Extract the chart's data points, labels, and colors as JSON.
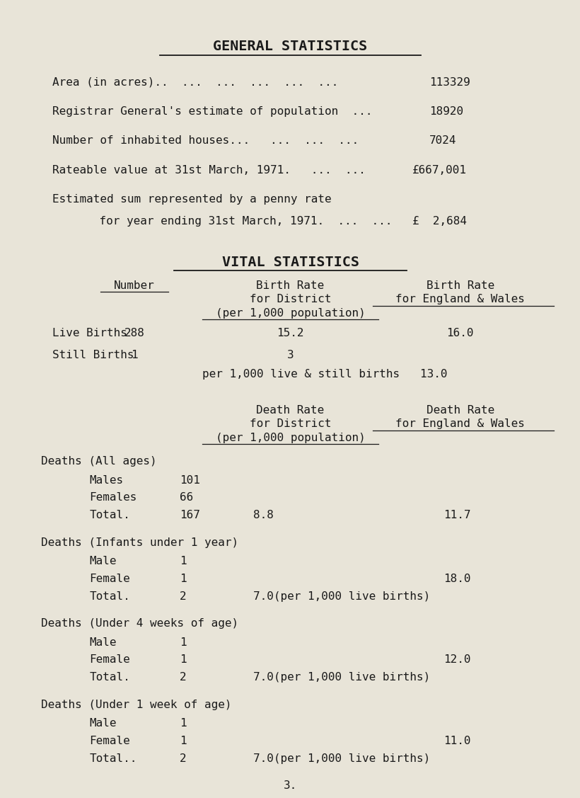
{
  "bg_color": "#e8e4d8",
  "text_color": "#1a1a1a",
  "title": "GENERAL STATISTICS",
  "title2": "VITAL STATISTICS",
  "general_stats": [
    {
      "label": "Area (in acres)..  ...  ...  ...  ...  ...",
      "value": "113329"
    },
    {
      "label": "Registrar General's estimate of population  ...",
      "value": "18920"
    },
    {
      "label": "Number of inhabited houses...   ...  ...  ...",
      "value": "7024"
    },
    {
      "label": "Rateable value at 31st March, 1971.   ...  ...",
      "value": "£667,001"
    },
    {
      "label": "Estimated sum represented by a penny rate",
      "value": "£  2,684",
      "label2": "    for year ending 31st March, 1971.  ...  ..."
    }
  ],
  "death_sections": [
    {
      "heading": "Deaths (All ages)",
      "rows": [
        {
          "label": "Males",
          "value": "101",
          "district_rate": "",
          "ew_rate": ""
        },
        {
          "label": "Females",
          "value": "66",
          "district_rate": "",
          "ew_rate": ""
        },
        {
          "label": "Total.",
          "value": "167",
          "district_rate": "8.8",
          "ew_rate": "11.7"
        }
      ]
    },
    {
      "heading": "Deaths (Infants under 1 year)",
      "rows": [
        {
          "label": "Male",
          "value": "1",
          "district_rate": "",
          "ew_rate": ""
        },
        {
          "label": "Female",
          "value": "1",
          "district_rate": "",
          "ew_rate": "18.0"
        },
        {
          "label": "Total.",
          "value": "2",
          "district_rate": "7.0(per 1,000 live births)",
          "ew_rate": ""
        }
      ]
    },
    {
      "heading": "Deaths (Under 4 weeks of age)",
      "rows": [
        {
          "label": "Male",
          "value": "1",
          "district_rate": "",
          "ew_rate": ""
        },
        {
          "label": "Female",
          "value": "1",
          "district_rate": "",
          "ew_rate": "12.0"
        },
        {
          "label": "Total.",
          "value": "2",
          "district_rate": "7.0(per 1,000 live births)",
          "ew_rate": ""
        }
      ]
    },
    {
      "heading": "Deaths (Under 1 week of age)",
      "rows": [
        {
          "label": "Male",
          "value": "1",
          "district_rate": "",
          "ew_rate": ""
        },
        {
          "label": "Female",
          "value": "1",
          "district_rate": "",
          "ew_rate": "11.0"
        },
        {
          "label": "Total..",
          "value": "2",
          "district_rate": "7.0(per 1,000 live births)",
          "ew_rate": ""
        }
      ]
    }
  ],
  "footer": "3.",
  "font_family": "monospace",
  "font_size": 11.5,
  "title_font_size": 14.5
}
